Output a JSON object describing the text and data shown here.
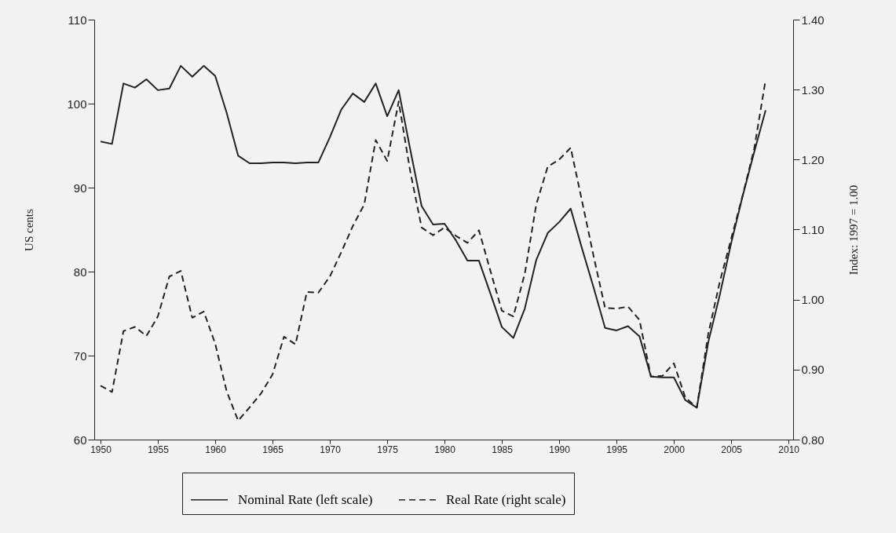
{
  "chart_data": {
    "type": "line",
    "x": [
      1950,
      1951,
      1952,
      1953,
      1954,
      1955,
      1956,
      1957,
      1958,
      1959,
      1960,
      1961,
      1962,
      1963,
      1964,
      1965,
      1966,
      1967,
      1968,
      1969,
      1970,
      1971,
      1972,
      1973,
      1974,
      1975,
      1976,
      1977,
      1978,
      1979,
      1980,
      1981,
      1982,
      1983,
      1984,
      1985,
      1986,
      1987,
      1988,
      1989,
      1990,
      1991,
      1992,
      1993,
      1994,
      1995,
      1996,
      1997,
      1998,
      1999,
      2000,
      2001,
      2002,
      2003,
      2004,
      2005,
      2006,
      2007,
      2008
    ],
    "series": [
      {
        "name": "Nominal Rate (left scale)",
        "color": "#222222",
        "line_style": "solid",
        "values": [
          95.5,
          95.2,
          102.4,
          101.9,
          102.9,
          101.6,
          101.8,
          104.5,
          103.2,
          104.5,
          103.3,
          98.9,
          93.8,
          92.9,
          92.9,
          93.0,
          93.0,
          92.9,
          93.0,
          93.0,
          96.0,
          99.3,
          101.2,
          100.2,
          102.4,
          98.5,
          101.6,
          94.6,
          87.8,
          85.6,
          85.7,
          83.7,
          81.3,
          81.3,
          77.4,
          73.4,
          72.1,
          75.6,
          81.4,
          84.6,
          85.9,
          87.5,
          82.7,
          78.1,
          73.3,
          73.0,
          73.5,
          72.3,
          67.5,
          67.4,
          67.4,
          64.7,
          63.8,
          71.6,
          77.2,
          83.4,
          89.0,
          94.2,
          99.2
        ]
      },
      {
        "name": "Real Rate (right scale)",
        "color": "#222222",
        "line_style": "dashed",
        "axis": "y2",
        "values": [
          0.877,
          0.868,
          0.955,
          0.961,
          0.948,
          0.976,
          1.033,
          1.041,
          0.974,
          0.983,
          0.937,
          0.869,
          0.827,
          0.846,
          0.866,
          0.893,
          0.947,
          0.936,
          1.011,
          1.01,
          1.033,
          1.068,
          1.105,
          1.136,
          1.228,
          1.198,
          1.283,
          1.184,
          1.103,
          1.092,
          1.103,
          1.091,
          1.081,
          1.099,
          1.041,
          0.984,
          0.976,
          1.037,
          1.136,
          1.19,
          1.2,
          1.217,
          1.14,
          1.062,
          0.988,
          0.987,
          0.99,
          0.971,
          0.89,
          0.891,
          0.909,
          0.86,
          0.846,
          0.951,
          1.025,
          1.087,
          1.149,
          1.215,
          1.314
        ]
      }
    ],
    "ylabel": "US cents",
    "y2label": "Index: 1997 = 1.00",
    "xlim": [
      1949.45,
      2010.4
    ],
    "xticks": [
      1950,
      1955,
      1960,
      1965,
      1970,
      1975,
      1980,
      1985,
      1990,
      1995,
      2000,
      2005,
      2010
    ],
    "ylim": [
      60,
      110
    ],
    "yticks": [
      60,
      70,
      80,
      90,
      100,
      110
    ],
    "y2lim": [
      0.8,
      1.4
    ],
    "y2ticks": [
      {
        "value": 0.8,
        "label": "0.80"
      },
      {
        "value": 0.9,
        "label": "0.90"
      },
      {
        "value": 1.0,
        "label": "1.00"
      },
      {
        "value": 1.1,
        "label": "1.10"
      },
      {
        "value": 1.2,
        "label": "1.20"
      },
      {
        "value": 1.3,
        "label": "1.30"
      },
      {
        "value": 1.4,
        "label": "1.40"
      }
    ],
    "grid": false,
    "legend": "bottom"
  }
}
